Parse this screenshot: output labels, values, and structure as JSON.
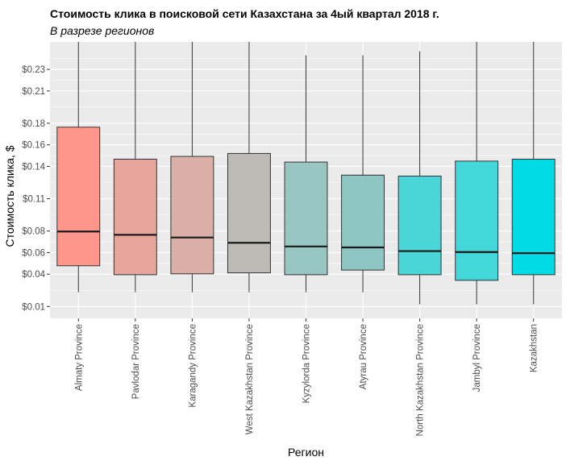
{
  "chart_data": {
    "type": "boxplot",
    "title": "Стоимость клика в поисковой сети Казахстана за 4ый квартал 2018 г.",
    "subtitle": "В разрезе регионов",
    "xlabel": "Регион",
    "ylabel": "Стоимость клика, $",
    "ylim": [
      -0.001,
      0.2555
    ],
    "yticks": [
      0.01,
      0.04,
      0.06,
      0.08,
      0.11,
      0.14,
      0.16,
      0.18,
      0.21,
      0.23
    ],
    "ytick_labels": [
      "$0.01",
      "$0.04",
      "$0.06",
      "$0.08",
      "$0.11",
      "$0.14",
      "$0.16",
      "$0.18",
      "$0.21",
      "$0.23"
    ],
    "categories": [
      "Almaty Province",
      "Pavlodar Province",
      "Karagandy Province",
      "West Kazakhstan Province",
      "Kyzylorda Province",
      "Atyrau Province",
      "North Kazakhstan Province",
      "Jambyl Province",
      "Kazakhstan"
    ],
    "boxes": [
      {
        "category": "Almaty Province",
        "whisker_low": 0.0232,
        "q1": 0.0478,
        "median": 0.0796,
        "q3": 0.1764,
        "whisker_high": 0.2555,
        "fill": "#ff958b"
      },
      {
        "category": "Pavlodar Province",
        "whisker_low": 0.0232,
        "q1": 0.0395,
        "median": 0.0765,
        "q3": 0.1467,
        "whisker_high": 0.2555,
        "fill": "#e8a59b"
      },
      {
        "category": "Karagandy Province",
        "whisker_low": 0.0232,
        "q1": 0.0403,
        "median": 0.074,
        "q3": 0.1493,
        "whisker_high": 0.2555,
        "fill": "#d9afa7"
      },
      {
        "category": "West Kazakhstan Province",
        "whisker_low": 0.0232,
        "q1": 0.0412,
        "median": 0.0691,
        "q3": 0.152,
        "whisker_high": 0.2555,
        "fill": "#bcbbb6"
      },
      {
        "category": "Kyzylorda Province",
        "whisker_low": 0.0232,
        "q1": 0.0395,
        "median": 0.0657,
        "q3": 0.144,
        "whisker_high": 0.2432,
        "fill": "#99c5c2"
      },
      {
        "category": "Atyrau Province",
        "whisker_low": 0.0232,
        "q1": 0.0438,
        "median": 0.0648,
        "q3": 0.1319,
        "whisker_high": 0.2432,
        "fill": "#8ec6c4"
      },
      {
        "category": "North Kazakhstan Province",
        "whisker_low": 0.012,
        "q1": 0.0395,
        "median": 0.0614,
        "q3": 0.131,
        "whisker_high": 0.2468,
        "fill": "#4ad6d8"
      },
      {
        "category": "Jambyl Province",
        "whisker_low": 0.012,
        "q1": 0.0343,
        "median": 0.0605,
        "q3": 0.1449,
        "whisker_high": 0.2555,
        "fill": "#44d7da"
      },
      {
        "category": "Kazakhstan",
        "whisker_low": 0.012,
        "q1": 0.0395,
        "median": 0.0595,
        "q3": 0.1467,
        "whisker_high": 0.2555,
        "fill": "#00dce6"
      }
    ],
    "colors": {
      "panel_background": "#ebebeb",
      "grid": "#ffffff",
      "box_outline": "#333333",
      "axis_text": "#4d4d4d"
    }
  }
}
